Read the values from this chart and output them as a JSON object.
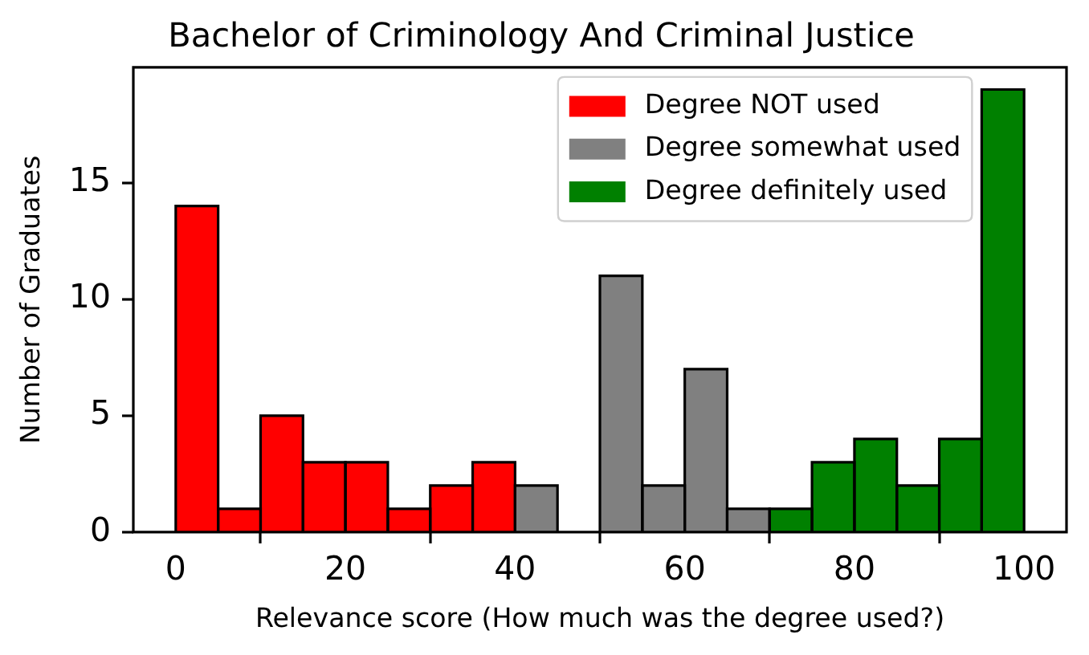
{
  "chart_data": {
    "type": "histogram",
    "title": "Bachelor of Criminology And Criminal Justice",
    "xlabel": "Relevance score (How much was the degree used?)",
    "ylabel": "Number of Graduates",
    "bins": [
      0,
      5,
      10,
      15,
      20,
      25,
      30,
      35,
      40,
      45,
      50,
      55,
      60,
      65,
      70,
      75,
      80,
      85,
      90,
      95,
      100
    ],
    "series": [
      {
        "name": "Degree NOT used",
        "color": "#ff0000",
        "values": [
          14,
          1,
          5,
          3,
          3,
          1,
          2,
          3,
          null,
          null,
          null,
          null,
          null,
          null,
          null,
          null,
          null,
          null,
          null,
          null
        ]
      },
      {
        "name": "Degree somewhat used",
        "color": "#808080",
        "values": [
          null,
          null,
          null,
          null,
          null,
          null,
          null,
          null,
          2,
          0,
          11,
          2,
          7,
          1,
          null,
          null,
          null,
          null,
          null,
          null
        ]
      },
      {
        "name": "Degree definitely used",
        "color": "#008000",
        "values": [
          null,
          null,
          null,
          null,
          null,
          null,
          null,
          null,
          null,
          null,
          null,
          null,
          null,
          null,
          1,
          3,
          4,
          2,
          4,
          19
        ]
      }
    ],
    "xlim": [
      -5,
      105
    ],
    "ylim": [
      0,
      19.95
    ],
    "xticks": [
      0,
      20,
      40,
      60,
      80,
      100
    ],
    "yticks": [
      0,
      5,
      10,
      15
    ],
    "legend": "top right"
  }
}
